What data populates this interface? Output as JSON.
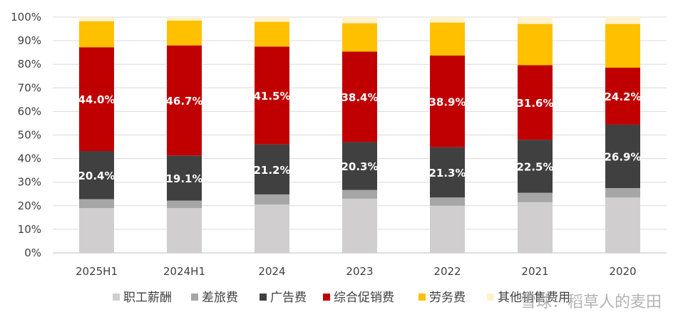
{
  "chart_data": {
    "type": "bar",
    "stacked": true,
    "categories": [
      "2025H1",
      "2024H1",
      "2024",
      "2023",
      "2022",
      "2021",
      "2020"
    ],
    "ylim": [
      0,
      100
    ],
    "yticks": [
      "0%",
      "10%",
      "20%",
      "30%",
      "40%",
      "50%",
      "60%",
      "70%",
      "80%",
      "90%",
      "100%"
    ],
    "grid": true,
    "legend_position": "bottom",
    "series": [
      {
        "name": "职工薪酬",
        "color": "#d0cece",
        "values": [
          19.0,
          19.0,
          20.5,
          23.0,
          20.0,
          21.5,
          23.5
        ],
        "labels": [
          "",
          "",
          "",
          "",
          "",
          "",
          ""
        ]
      },
      {
        "name": "差旅费",
        "color": "#a6a6a6",
        "values": [
          3.8,
          3.2,
          4.3,
          3.7,
          3.5,
          4.0,
          4.0
        ],
        "labels": [
          "",
          "",
          "",
          "",
          "",
          "",
          ""
        ]
      },
      {
        "name": "广告费",
        "color": "#404040",
        "values": [
          20.4,
          19.1,
          21.2,
          20.3,
          21.3,
          22.5,
          26.9
        ],
        "labels": [
          "20.4%",
          "19.1%",
          "21.2%",
          "20.3%",
          "21.3%",
          "22.5%",
          "26.9%"
        ]
      },
      {
        "name": "综合促销费",
        "color": "#c00000",
        "values": [
          44.0,
          46.7,
          41.5,
          38.4,
          38.9,
          31.6,
          24.2
        ],
        "labels": [
          "44.0%",
          "46.7%",
          "41.5%",
          "38.4%",
          "38.9%",
          "31.6%",
          "24.2%"
        ]
      },
      {
        "name": "劳务费",
        "color": "#ffc000",
        "values": [
          11.0,
          10.5,
          10.5,
          12.0,
          14.0,
          17.5,
          18.5
        ],
        "labels": [
          "",
          "",
          "",
          "",
          "",
          "",
          ""
        ]
      },
      {
        "name": "其他销售费用",
        "color": "#fff2cc",
        "values": [
          1.8,
          1.5,
          2.0,
          2.6,
          2.3,
          2.9,
          2.9
        ],
        "labels": [
          "",
          "",
          "",
          "",
          "",
          "",
          ""
        ]
      }
    ]
  },
  "watermark": "雪球：稻草人的麦田"
}
